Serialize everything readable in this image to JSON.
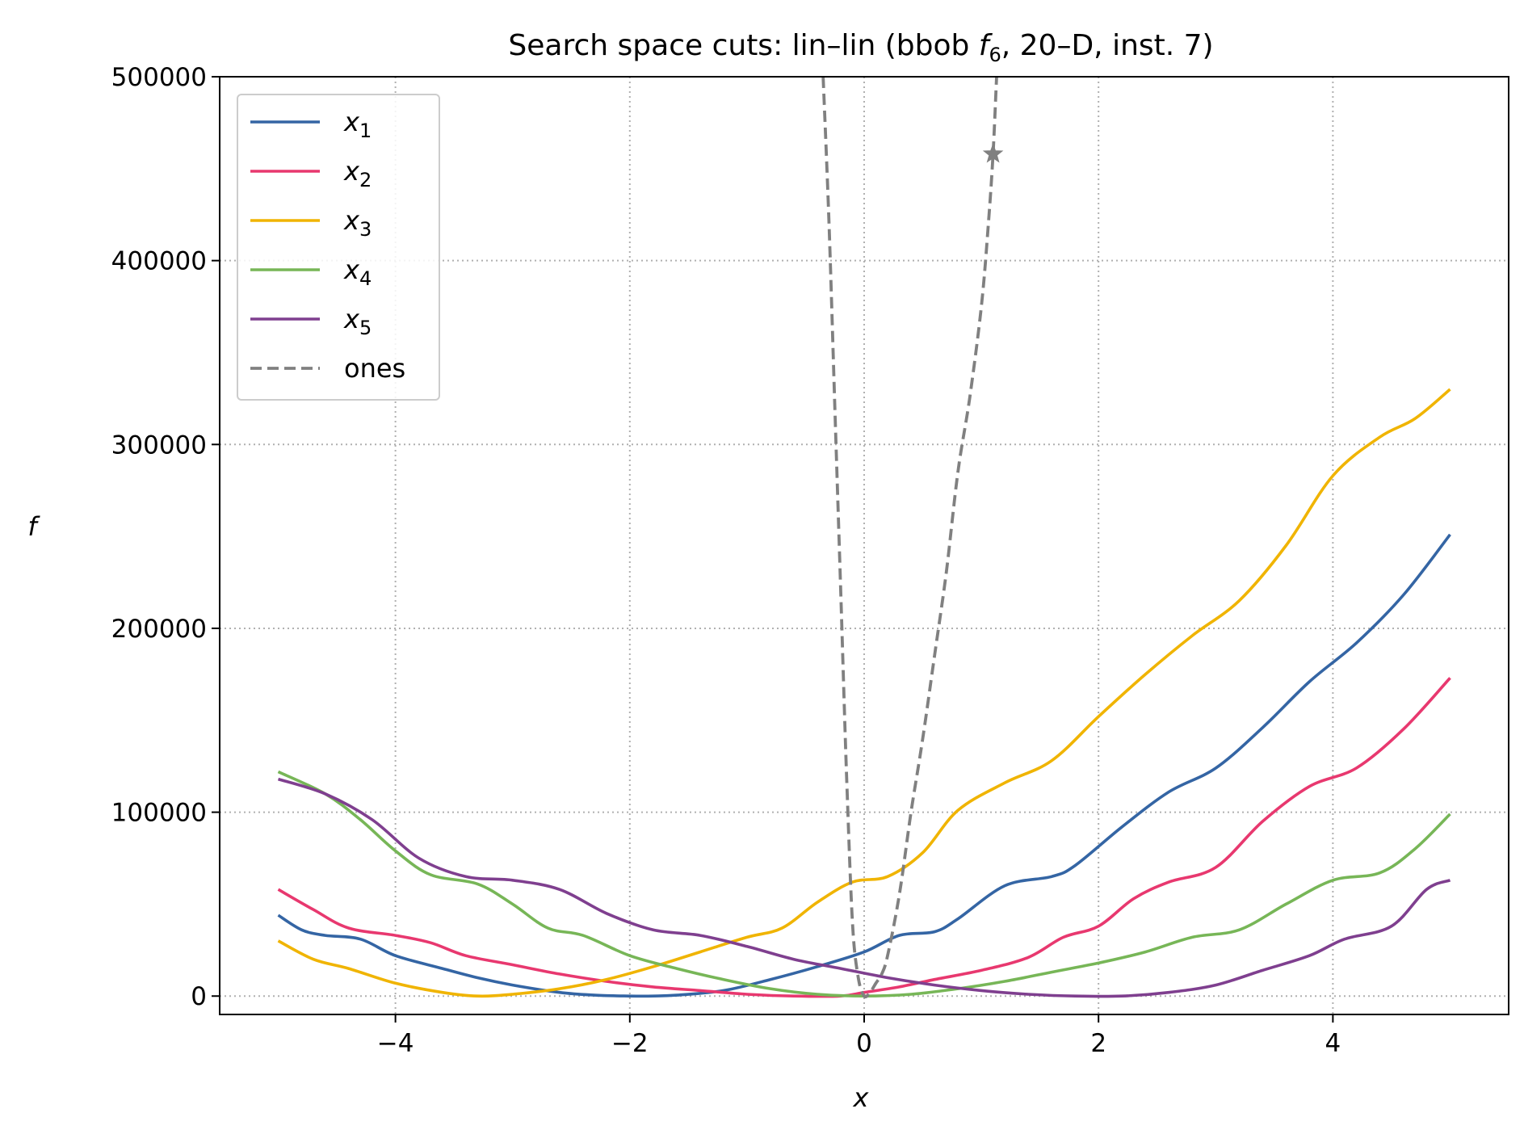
{
  "chart_data": {
    "type": "line",
    "title": "Search space cuts: lin–lin (bbob f6, 20–D, inst. 7)",
    "title_parts": {
      "prefix": "Search space cuts: lin–lin (bbob ",
      "f": "f",
      "sub": "6",
      "suffix": ", 20–D, inst. 7)"
    },
    "xlabel": "x",
    "ylabel": "f",
    "xlim": [
      -5.5,
      5.5
    ],
    "ylim": [
      -10000,
      500000
    ],
    "xticks": [
      -4,
      -2,
      0,
      2,
      4
    ],
    "xtick_labels": [
      "−4",
      "−2",
      "0",
      "2",
      "4"
    ],
    "yticks": [
      0,
      100000,
      200000,
      300000,
      400000,
      500000
    ],
    "ytick_labels": [
      "0",
      "100000",
      "200000",
      "300000",
      "400000",
      "500000"
    ],
    "grid": true,
    "legend_position": "upper-left",
    "series": [
      {
        "name": "x1",
        "label_base": "x",
        "label_sub": "1",
        "color": "#3465a4",
        "style": "solid",
        "x": [
          -5,
          -4.8,
          -4.6,
          -4.3,
          -4.0,
          -3.6,
          -3.3,
          -3.0,
          -2.6,
          -2.3,
          -2.0,
          -1.8,
          -1.6,
          -1.2,
          -0.8,
          -0.4,
          0.0,
          0.3,
          0.6,
          0.8,
          1.2,
          1.6,
          1.8,
          2.2,
          2.6,
          3.0,
          3.4,
          3.8,
          4.2,
          4.6,
          5.0
        ],
        "y": [
          44000,
          36000,
          33000,
          31000,
          22000,
          15000,
          10000,
          6000,
          2000,
          500,
          0,
          0,
          500,
          3000,
          9000,
          16000,
          24000,
          33000,
          35000,
          42000,
          60000,
          65000,
          71000,
          92000,
          111000,
          124000,
          146000,
          171000,
          192000,
          218000,
          251000
        ]
      },
      {
        "name": "x2",
        "label_base": "x",
        "label_sub": "2",
        "color": "#e8386f",
        "style": "solid",
        "x": [
          -5,
          -4.7,
          -4.4,
          -4.0,
          -3.7,
          -3.4,
          -3.0,
          -2.6,
          -2.2,
          -1.8,
          -1.4,
          -1.0,
          -0.6,
          -0.2,
          0.0,
          0.3,
          0.6,
          1.0,
          1.4,
          1.7,
          2.0,
          2.3,
          2.6,
          3.0,
          3.4,
          3.8,
          4.2,
          4.6,
          5.0
        ],
        "y": [
          58000,
          47000,
          37000,
          33000,
          29000,
          22000,
          17000,
          12000,
          8000,
          5000,
          3000,
          1000,
          0,
          0,
          2000,
          5000,
          9000,
          14000,
          21000,
          32000,
          38000,
          53000,
          62000,
          70000,
          95000,
          114000,
          124000,
          145000,
          173000
        ]
      },
      {
        "name": "x3",
        "label_base": "x",
        "label_sub": "3",
        "color": "#f0b400",
        "style": "solid",
        "x": [
          -5,
          -4.7,
          -4.4,
          -4.0,
          -3.6,
          -3.3,
          -3.0,
          -2.6,
          -2.2,
          -1.8,
          -1.4,
          -1.0,
          -0.7,
          -0.4,
          -0.1,
          0.2,
          0.5,
          0.8,
          1.2,
          1.6,
          2.0,
          2.4,
          2.8,
          3.2,
          3.6,
          4.0,
          4.4,
          4.7,
          5.0
        ],
        "y": [
          30000,
          20000,
          15000,
          7000,
          2000,
          0,
          1000,
          4000,
          9000,
          16000,
          24000,
          32000,
          37000,
          51000,
          62000,
          65000,
          78000,
          101000,
          116000,
          128000,
          152000,
          175000,
          196000,
          215000,
          245000,
          283000,
          304000,
          314000,
          330000
        ]
      },
      {
        "name": "x4",
        "label_base": "x",
        "label_sub": "4",
        "color": "#77b657",
        "style": "solid",
        "x": [
          -5,
          -4.6,
          -4.3,
          -4.0,
          -3.7,
          -3.3,
          -3.0,
          -2.7,
          -2.4,
          -2.0,
          -1.6,
          -1.2,
          -0.8,
          -0.4,
          0.0,
          0.4,
          0.8,
          1.2,
          1.6,
          2.0,
          2.4,
          2.8,
          3.2,
          3.6,
          4.0,
          4.4,
          4.7,
          5.0
        ],
        "y": [
          122000,
          110000,
          96000,
          79000,
          66000,
          61000,
          50000,
          37000,
          33000,
          22000,
          15000,
          9000,
          4000,
          1000,
          0,
          1000,
          4000,
          8000,
          13000,
          18000,
          24000,
          32000,
          36000,
          50000,
          63000,
          67000,
          80000,
          99000
        ]
      },
      {
        "name": "x5",
        "label_base": "x",
        "label_sub": "5",
        "color": "#7f3f8f",
        "style": "solid",
        "x": [
          -5,
          -4.6,
          -4.2,
          -3.8,
          -3.4,
          -3.0,
          -2.6,
          -2.2,
          -1.8,
          -1.4,
          -1.0,
          -0.6,
          -0.2,
          0.2,
          0.6,
          1.0,
          1.4,
          1.8,
          2.2,
          2.6,
          3.0,
          3.4,
          3.8,
          4.1,
          4.5,
          4.8,
          5.0
        ],
        "y": [
          118000,
          110000,
          96000,
          75000,
          65000,
          63000,
          58000,
          45000,
          36000,
          33000,
          27000,
          20000,
          15000,
          10000,
          6000,
          3000,
          1000,
          0,
          0,
          2000,
          6000,
          14000,
          22000,
          31000,
          38000,
          58000,
          63000
        ]
      },
      {
        "name": "ones",
        "label": "ones",
        "color": "#808080",
        "style": "dashed",
        "x": [
          -0.35,
          -0.3,
          -0.25,
          -0.2,
          -0.15,
          -0.1,
          -0.05,
          0.0,
          0.05,
          0.1,
          0.15,
          0.2,
          0.3,
          0.4,
          0.5,
          0.6,
          0.7,
          0.8,
          0.9,
          1.0,
          1.06,
          1.1,
          1.13
        ],
        "y": [
          500000,
          420000,
          320000,
          220000,
          120000,
          40000,
          10000,
          0,
          2000,
          7000,
          12000,
          22000,
          55000,
          100000,
          140000,
          185000,
          230000,
          285000,
          325000,
          375000,
          420000,
          458000,
          500000
        ]
      }
    ],
    "markers": [
      {
        "series": "ones",
        "shape": "star",
        "x": 1.1,
        "y": 458000,
        "color": "#808080"
      }
    ]
  }
}
